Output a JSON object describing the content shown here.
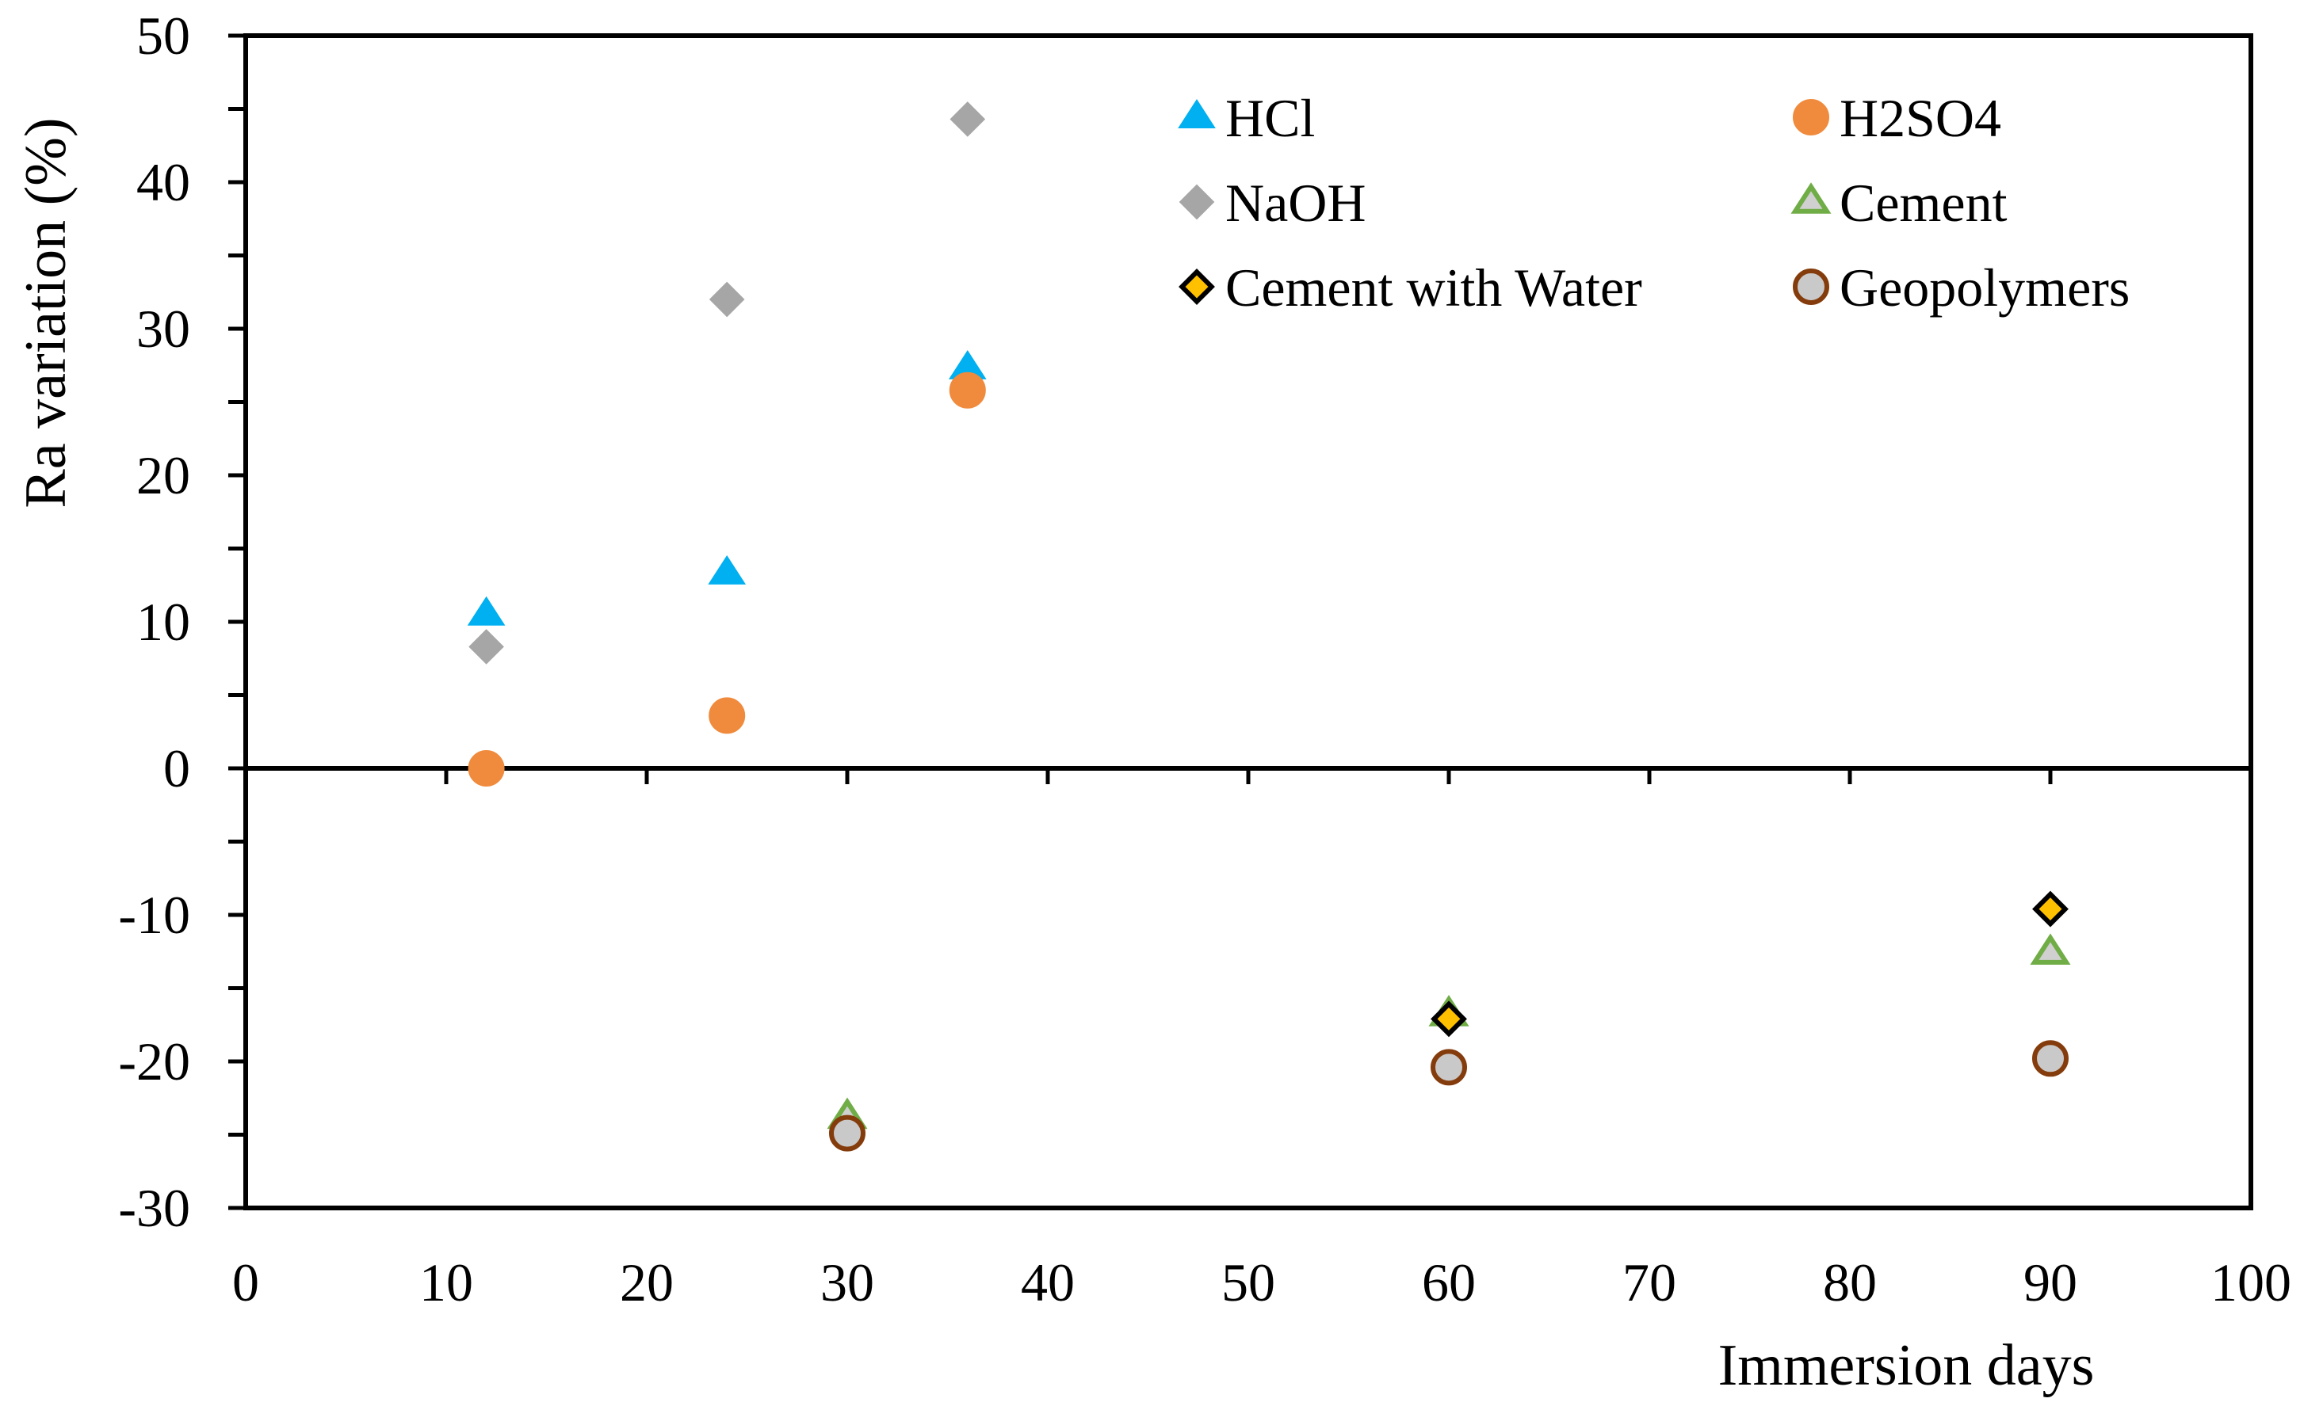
{
  "chart_data": {
    "type": "scatter",
    "title": "",
    "xlabel": "Immersion days",
    "ylabel": "Ra variation (%)",
    "xlim": [
      0,
      100
    ],
    "ylim": [
      -30,
      50
    ],
    "x_ticks": [
      "0",
      "10",
      "20",
      "30",
      "40",
      "50",
      "60",
      "70",
      "80",
      "90",
      "100"
    ],
    "y_ticks": [
      "50",
      "40",
      "30",
      "20",
      "10",
      "0",
      "-10",
      "-20",
      "-30"
    ],
    "x_tick_values": [
      0,
      10,
      20,
      30,
      40,
      50,
      60,
      70,
      80,
      90,
      100
    ],
    "y_tick_values": [
      50,
      40,
      30,
      20,
      10,
      0,
      -10,
      -20,
      -30
    ],
    "legend_position": "top-right",
    "series": [
      {
        "name": "HCl",
        "marker": "triangle",
        "fill": "#00b0f0",
        "stroke": "#00b0f0",
        "points": [
          [
            12,
            10.5
          ],
          [
            24,
            13.3
          ],
          [
            36,
            27.3
          ]
        ]
      },
      {
        "name": "H2SO4",
        "marker": "circle",
        "fill": "#f08a3c",
        "stroke": "#f08a3c",
        "points": [
          [
            12,
            0
          ],
          [
            24,
            3.6
          ],
          [
            36,
            25.8
          ]
        ]
      },
      {
        "name": "NaOH",
        "marker": "diamond",
        "fill": "#a6a6a6",
        "stroke": "#a6a6a6",
        "points": [
          [
            12,
            8.3
          ],
          [
            24,
            32.0
          ],
          [
            36,
            44.3
          ]
        ]
      },
      {
        "name": "Cement",
        "marker": "triangle-open",
        "fill": "#d0d0d0",
        "stroke": "#70ad47",
        "points": [
          [
            30,
            -23.8
          ],
          [
            60,
            -16.8
          ],
          [
            90,
            -12.6
          ]
        ]
      },
      {
        "name": "Cement with Water",
        "marker": "diamond-outlined",
        "fill": "#ffc000",
        "stroke": "#000000",
        "points": [
          [
            60,
            -17.1
          ],
          [
            90,
            -9.6
          ]
        ]
      },
      {
        "name": "Geopolymers",
        "marker": "circle-outlined",
        "fill": "#c9c9c9",
        "stroke": "#843c0c",
        "points": [
          [
            30,
            -24.9
          ],
          [
            60,
            -20.4
          ],
          [
            90,
            -19.8
          ]
        ]
      }
    ]
  }
}
